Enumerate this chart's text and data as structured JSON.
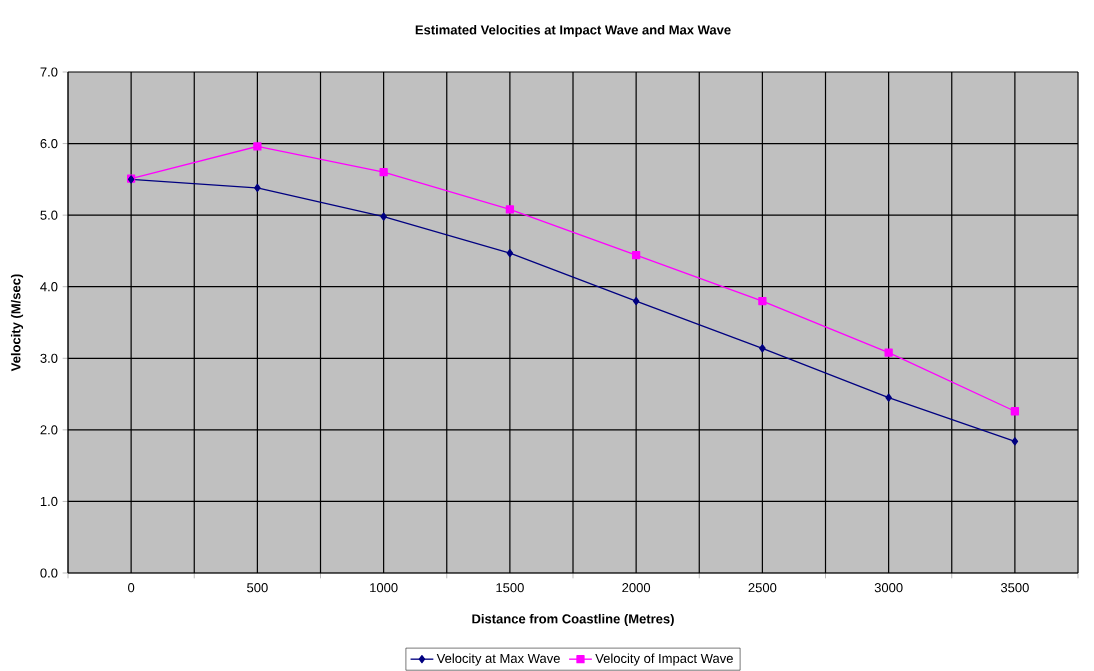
{
  "chart_data": {
    "type": "line",
    "title": "Estimated Velocities at Impact Wave and Max Wave",
    "xlabel": "Distance from Coastline (Metres)",
    "ylabel": "Velocity (M/sec)",
    "categories": [
      "0",
      "500",
      "1000",
      "1500",
      "2000",
      "2500",
      "3000",
      "3500"
    ],
    "series": [
      {
        "name": "Velocity at Max Wave",
        "color": "#000080",
        "marker": "diamond",
        "values": [
          5.5,
          5.38,
          4.98,
          4.47,
          3.8,
          3.14,
          2.45,
          1.84
        ]
      },
      {
        "name": "Velocity of Impact Wave",
        "color": "#ff00ff",
        "marker": "square",
        "values": [
          5.51,
          5.96,
          5.6,
          5.08,
          4.44,
          3.8,
          3.08,
          2.26
        ]
      }
    ],
    "ylim": [
      0,
      7
    ],
    "yticks": [
      {
        "value": 0,
        "label": "0.0"
      },
      {
        "value": 1,
        "label": "1.0"
      },
      {
        "value": 2,
        "label": "2.0"
      },
      {
        "value": 3,
        "label": "3.0"
      },
      {
        "value": 4,
        "label": "4.0"
      },
      {
        "value": 5,
        "label": "5.0"
      },
      {
        "value": 6,
        "label": "6.0"
      },
      {
        "value": 7,
        "label": "7.0"
      }
    ],
    "grid": true,
    "legend": "bottom",
    "line_style": "solid"
  }
}
